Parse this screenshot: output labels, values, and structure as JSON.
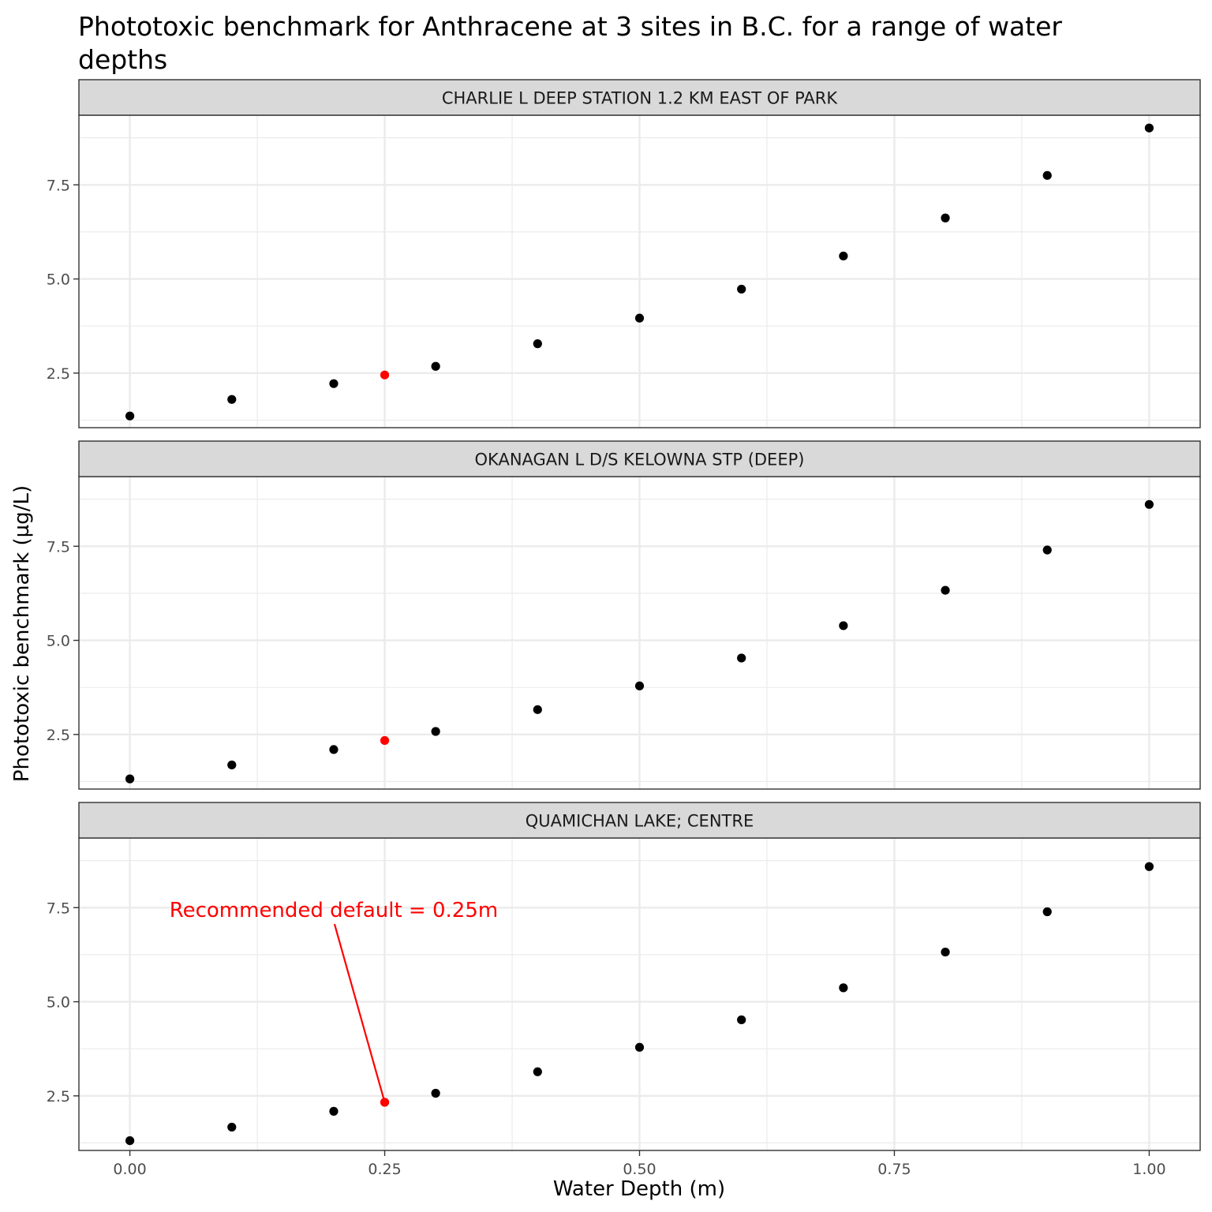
{
  "chart_data": {
    "type": "scatter",
    "title_lines": [
      "Phototoxic benchmark for Anthracene at 3 sites in B.C. for a range of water",
      "depths"
    ],
    "xlabel": "Water Depth (m)",
    "ylabel": "Phototoxic benchmark (µg/L)",
    "xlim": [
      -0.05,
      1.05
    ],
    "ylim": [
      1.05,
      9.35
    ],
    "x_ticks": [
      0,
      0.25,
      0.5,
      0.75,
      1
    ],
    "x_tick_labels": [
      "0.00",
      "0.25",
      "0.50",
      "0.75",
      "1.00"
    ],
    "y_ticks": [
      2.5,
      5.0,
      7.5
    ],
    "y_tick_labels": [
      "2.5",
      "5.0",
      "7.5"
    ],
    "grid": true,
    "point_color": "#000000",
    "highlight_color": "#ff0000",
    "highlight_x": 0.25,
    "facets": [
      {
        "name": "CHARLIE L DEEP STATION 1.2 KM EAST OF PARK",
        "x": [
          0.0,
          0.1,
          0.2,
          0.25,
          0.3,
          0.4,
          0.5,
          0.6,
          0.7,
          0.8,
          0.9,
          1.0
        ],
        "y": [
          1.36,
          1.8,
          2.22,
          2.45,
          2.68,
          3.28,
          3.96,
          4.73,
          5.61,
          6.62,
          7.75,
          9.01
        ]
      },
      {
        "name": "OKANAGAN L D/S KELOWNA STP (DEEP)",
        "x": [
          0.0,
          0.1,
          0.2,
          0.25,
          0.3,
          0.4,
          0.5,
          0.6,
          0.7,
          0.8,
          0.9,
          1.0
        ],
        "y": [
          1.32,
          1.69,
          2.1,
          2.34,
          2.58,
          3.16,
          3.79,
          4.53,
          5.39,
          6.33,
          7.4,
          8.61
        ]
      },
      {
        "name": "QUAMICHAN LAKE; CENTRE",
        "x": [
          0.0,
          0.1,
          0.2,
          0.25,
          0.3,
          0.4,
          0.5,
          0.6,
          0.7,
          0.8,
          0.9,
          1.0
        ],
        "y": [
          1.31,
          1.67,
          2.09,
          2.33,
          2.57,
          3.14,
          3.79,
          4.52,
          5.37,
          6.32,
          7.39,
          8.59
        ]
      }
    ],
    "annotation": {
      "text": "Recommended default = 0.25m",
      "facet_index": 2,
      "text_x": 0.2,
      "text_y": 7.4,
      "target_x": 0.25,
      "target_y": 2.33,
      "color": "#ff0000"
    }
  }
}
